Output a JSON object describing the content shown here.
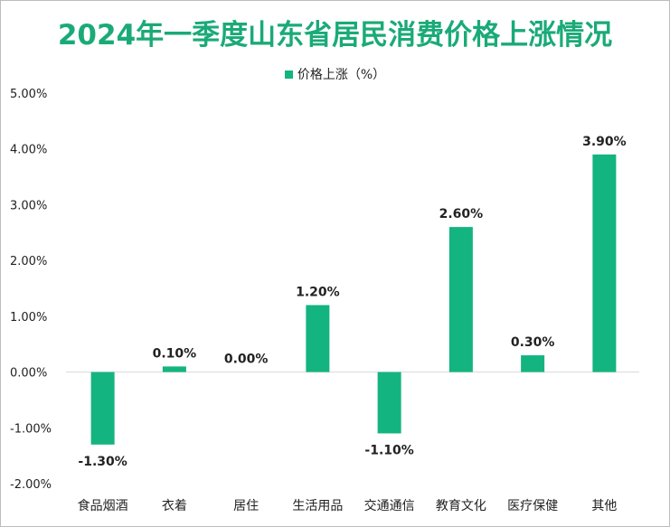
{
  "chart_data": {
    "type": "bar",
    "title": "2024年一季度山东省居民消费价格上涨情况",
    "legend": [
      "价格上涨（%）"
    ],
    "legend_position": "top",
    "categories": [
      "食品烟酒",
      "衣着",
      "居住",
      "生活用品",
      "交通通信",
      "教育文化",
      "医疗保健",
      "其他"
    ],
    "series": [
      {
        "name": "价格上涨（%）",
        "values": [
          -1.3,
          0.1,
          0.0,
          1.2,
          -1.1,
          2.6,
          0.3,
          3.9
        ]
      }
    ],
    "data_labels": [
      "-1.30%",
      "0.10%",
      "0.00%",
      "1.20%",
      "-1.10%",
      "2.60%",
      "0.30%",
      "3.90%"
    ],
    "ylim": [
      -2,
      5
    ],
    "yticks": [
      "5.00%",
      "4.00%",
      "3.00%",
      "2.00%",
      "1.00%",
      "0.00%",
      "-1.00%",
      "-2.00%"
    ],
    "ytick_values": [
      5,
      4,
      3,
      2,
      1,
      0,
      -1,
      -2
    ],
    "grid": false,
    "bar_color": "#13b47f",
    "title_color": "#1aaa78"
  }
}
